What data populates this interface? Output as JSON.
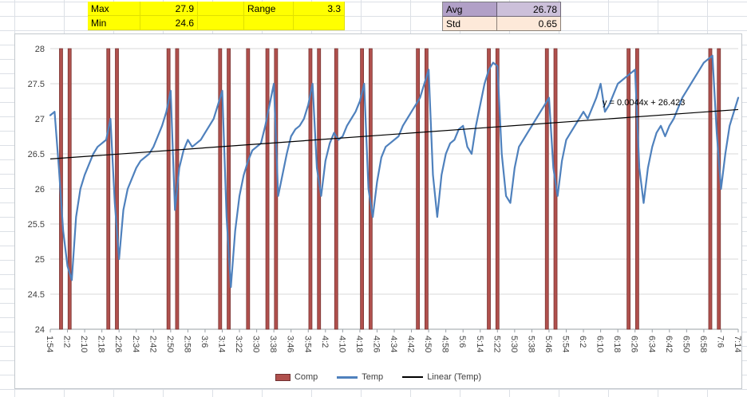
{
  "stats": {
    "max_label": "Max",
    "max_value": "27.9",
    "range_label": "Range",
    "range_value": "3.3",
    "min_label": "Min",
    "min_value": "24.6",
    "avg_label": "Avg",
    "avg_value": "26.78",
    "std_label": "Std",
    "std_value": "0.65"
  },
  "colors": {
    "highlight_yellow": "#ffff00",
    "avg_label_bg": "#b1a0c7",
    "avg_value_bg": "#ccc0da",
    "std_label_bg": "#fde9d9",
    "std_value_bg": "#fde9d9",
    "comp_red": "#b0504d",
    "comp_red_border": "#7a3533",
    "temp_blue": "#4f81bd",
    "trend_black": "#000000",
    "gridline": "#d9d9d9",
    "axis_line": "#9aa0a6"
  },
  "chart_data": {
    "type": "line",
    "title": "",
    "xlabel": "",
    "ylabel": "",
    "ylim": [
      24,
      28
    ],
    "y_tick_step": 0.5,
    "y_tick_labels": [
      "28",
      "27.5",
      "27",
      "26.5",
      "26",
      "25.5",
      "25",
      "24.5",
      "24"
    ],
    "x_total_minutes": 320,
    "x_label_interval_min": 8,
    "x_tick_labels": [
      "1:54",
      "2:2",
      "2:10",
      "2:18",
      "2:26",
      "2:34",
      "2:42",
      "2:50",
      "2:58",
      "3:6",
      "3:14",
      "3:22",
      "3:30",
      "3:38",
      "3:46",
      "3:54",
      "4:2",
      "4:10",
      "4:18",
      "4:26",
      "4:34",
      "4:42",
      "4:50",
      "4:58",
      "5:6",
      "5:14",
      "5:22",
      "5:30",
      "5:38",
      "5:46",
      "5:54",
      "6:2",
      "6:10",
      "6:18",
      "6:26",
      "6:34",
      "6:42",
      "6:50",
      "6:58",
      "7:6",
      "7:14"
    ],
    "layout_hints": {
      "grid": "horizontal-only",
      "legend_position": "bottom",
      "x_labels_rotated": true
    },
    "legend": [
      "Comp",
      "Temp",
      "Linear (Temp)"
    ],
    "series": [
      {
        "name": "Comp",
        "type": "vertical-bars",
        "color": "#b0504d",
        "times_min": [
          5,
          9,
          27,
          31,
          55,
          59,
          79,
          83,
          92,
          101,
          105,
          121,
          125,
          133,
          145,
          149,
          171,
          175,
          204,
          208,
          231,
          235,
          269,
          273,
          307,
          311
        ]
      },
      {
        "name": "Temp",
        "type": "line",
        "color": "#4f81bd",
        "interval_min": 2,
        "values": [
          27.05,
          27.1,
          26.3,
          25.4,
          24.9,
          24.7,
          25.6,
          26.0,
          26.2,
          26.35,
          26.5,
          26.6,
          26.65,
          26.7,
          27.0,
          25.8,
          25.0,
          25.7,
          26.0,
          26.15,
          26.3,
          26.4,
          26.45,
          26.5,
          26.6,
          26.75,
          26.9,
          27.1,
          27.4,
          25.7,
          26.3,
          26.55,
          26.7,
          26.6,
          26.65,
          26.7,
          26.8,
          26.9,
          27.0,
          27.2,
          27.4,
          25.6,
          24.6,
          25.4,
          25.9,
          26.2,
          26.4,
          26.55,
          26.6,
          26.65,
          26.9,
          27.2,
          27.5,
          25.9,
          26.2,
          26.5,
          26.75,
          26.85,
          26.9,
          27.0,
          27.2,
          27.5,
          26.3,
          25.9,
          26.4,
          26.65,
          26.8,
          26.7,
          26.75,
          26.9,
          27.0,
          27.1,
          27.25,
          27.5,
          26.0,
          25.6,
          26.1,
          26.45,
          26.6,
          26.65,
          26.7,
          26.75,
          26.9,
          27.0,
          27.1,
          27.2,
          27.3,
          27.5,
          27.7,
          26.2,
          25.6,
          26.2,
          26.5,
          26.65,
          26.7,
          26.85,
          26.9,
          26.6,
          26.5,
          26.9,
          27.2,
          27.5,
          27.7,
          27.8,
          27.75,
          26.5,
          25.9,
          25.8,
          26.3,
          26.6,
          26.7,
          26.8,
          26.9,
          27.0,
          27.1,
          27.2,
          27.3,
          26.3,
          25.9,
          26.4,
          26.7,
          26.8,
          26.9,
          27.0,
          27.1,
          27.0,
          27.15,
          27.3,
          27.5,
          27.1,
          27.2,
          27.35,
          27.5,
          27.55,
          27.6,
          27.65,
          27.7,
          26.3,
          25.8,
          26.3,
          26.6,
          26.8,
          26.9,
          26.75,
          26.9,
          27.0,
          27.15,
          27.3,
          27.4,
          27.5,
          27.6,
          27.7,
          27.8,
          27.85,
          27.9,
          26.8,
          26.0,
          26.5,
          26.9,
          27.1,
          27.3
        ]
      },
      {
        "name": "Linear (Temp)",
        "type": "trend",
        "color": "#000000",
        "equation": "y = 0.0044x + 26.423",
        "slope_per_point": 0.0044,
        "intercept": 26.423
      }
    ]
  }
}
